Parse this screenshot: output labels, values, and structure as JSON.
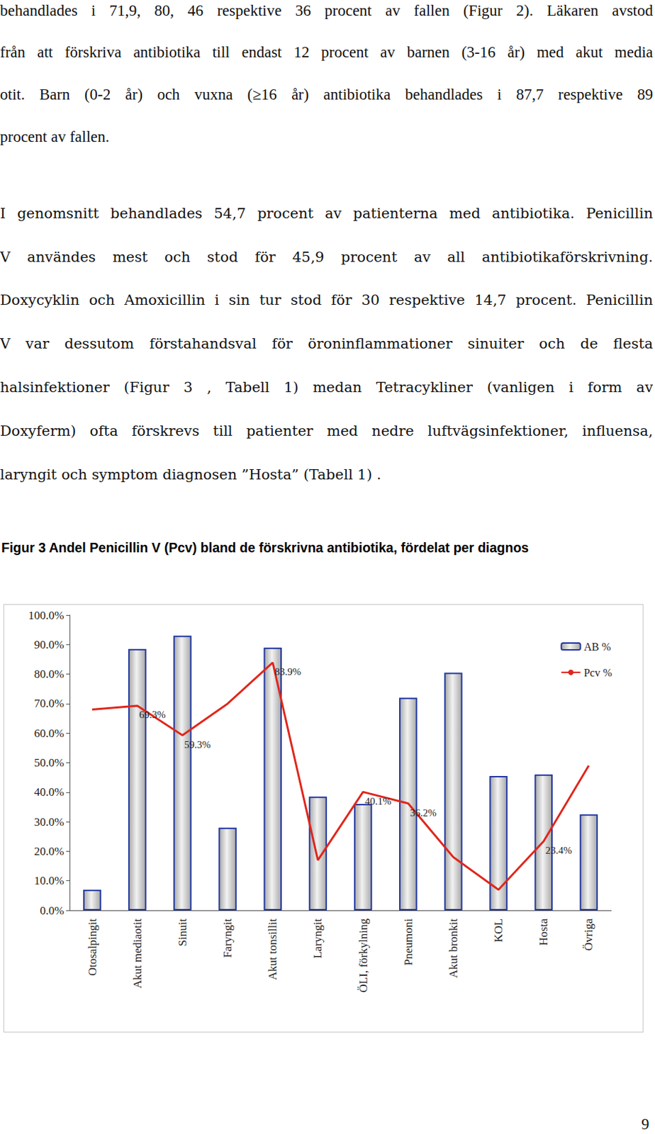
{
  "document": {
    "paragraphs": [
      [
        "behandlades i 71,9, 80, 46 respektive 36 procent av fallen (Figur 2). Läkaren avstod",
        "från att förskriva antibiotika till endast 12 procent av barnen (3-16 år) med akut media",
        "otit. Barn (0-2 år) och vuxna (≥16 år) antibiotika behandlades i 87,7 respektive 89",
        "procent av fallen."
      ],
      [
        "I genomsnitt behandlades 54,7 procent av patienterna med antibiotika. Penicillin",
        "V användes mest och stod för 45,9 procent av all antibiotikaförskrivning.",
        "Doxycyklin och Amoxicillin i sin tur stod för 30 respektive 14,7 procent. Penicillin",
        "V var dessutom förstahandsval för öroninflammationer sinuiter och de flesta",
        "halsinfektioner (Figur 3 , Tabell 1) medan Tetracykliner (vanligen i form av",
        "Doxyferm) ofta förskrevs till patienter med nedre luftvägsinfektioner, influensa,",
        "laryngit och symptom diagnosen ”Hosta” (Tabell 1) ."
      ]
    ],
    "figure_caption": "Figur 3  Andel Penicillin V (Pcv) bland de förskrivna antibiotika, fördelat per diagnos",
    "page_number": "9"
  },
  "chart_data": {
    "type": "bar",
    "categories": [
      "Otosalpingit",
      "Akut mediaotit",
      "Sinuit",
      "Faryngit",
      "Akut tonsillit",
      "Laryngit",
      "ÖLI, förkylning",
      "Pneumoni",
      "Akut bronkit",
      "KOL",
      "Hosta",
      "Övriga"
    ],
    "series": [
      {
        "name": "AB %",
        "type": "bar",
        "color": "#a8a8a8",
        "values": [
          7,
          88.5,
          93,
          28,
          89,
          38.5,
          36,
          72,
          80.5,
          45.5,
          46,
          32.5
        ]
      },
      {
        "name": "Pcv %",
        "type": "line",
        "color": "#e0261b",
        "values": [
          68,
          69.3,
          59.3,
          70,
          83.9,
          17,
          40.1,
          36.2,
          18,
          7,
          23.4,
          49
        ],
        "value_labels": [
          null,
          "69.3%",
          "59.3%",
          null,
          "83.9%",
          null,
          "40.1%",
          "36.2%",
          null,
          null,
          "23.4%",
          null
        ]
      }
    ],
    "ylim": [
      0,
      100
    ],
    "yticks": [
      {
        "value": 0,
        "label": "0.0%"
      },
      {
        "value": 10,
        "label": "10.0%"
      },
      {
        "value": 20,
        "label": "20.0%"
      },
      {
        "value": 30,
        "label": "30.0%"
      },
      {
        "value": 40,
        "label": "40.0%"
      },
      {
        "value": 50,
        "label": "50.0%"
      },
      {
        "value": 60,
        "label": "60.0%"
      },
      {
        "value": 70,
        "label": "70.0%"
      },
      {
        "value": 80,
        "label": "80.0%"
      },
      {
        "value": 90,
        "label": "90.0%"
      },
      {
        "value": 100,
        "label": "100.0%"
      }
    ],
    "grid": false,
    "legend": "upper right"
  }
}
